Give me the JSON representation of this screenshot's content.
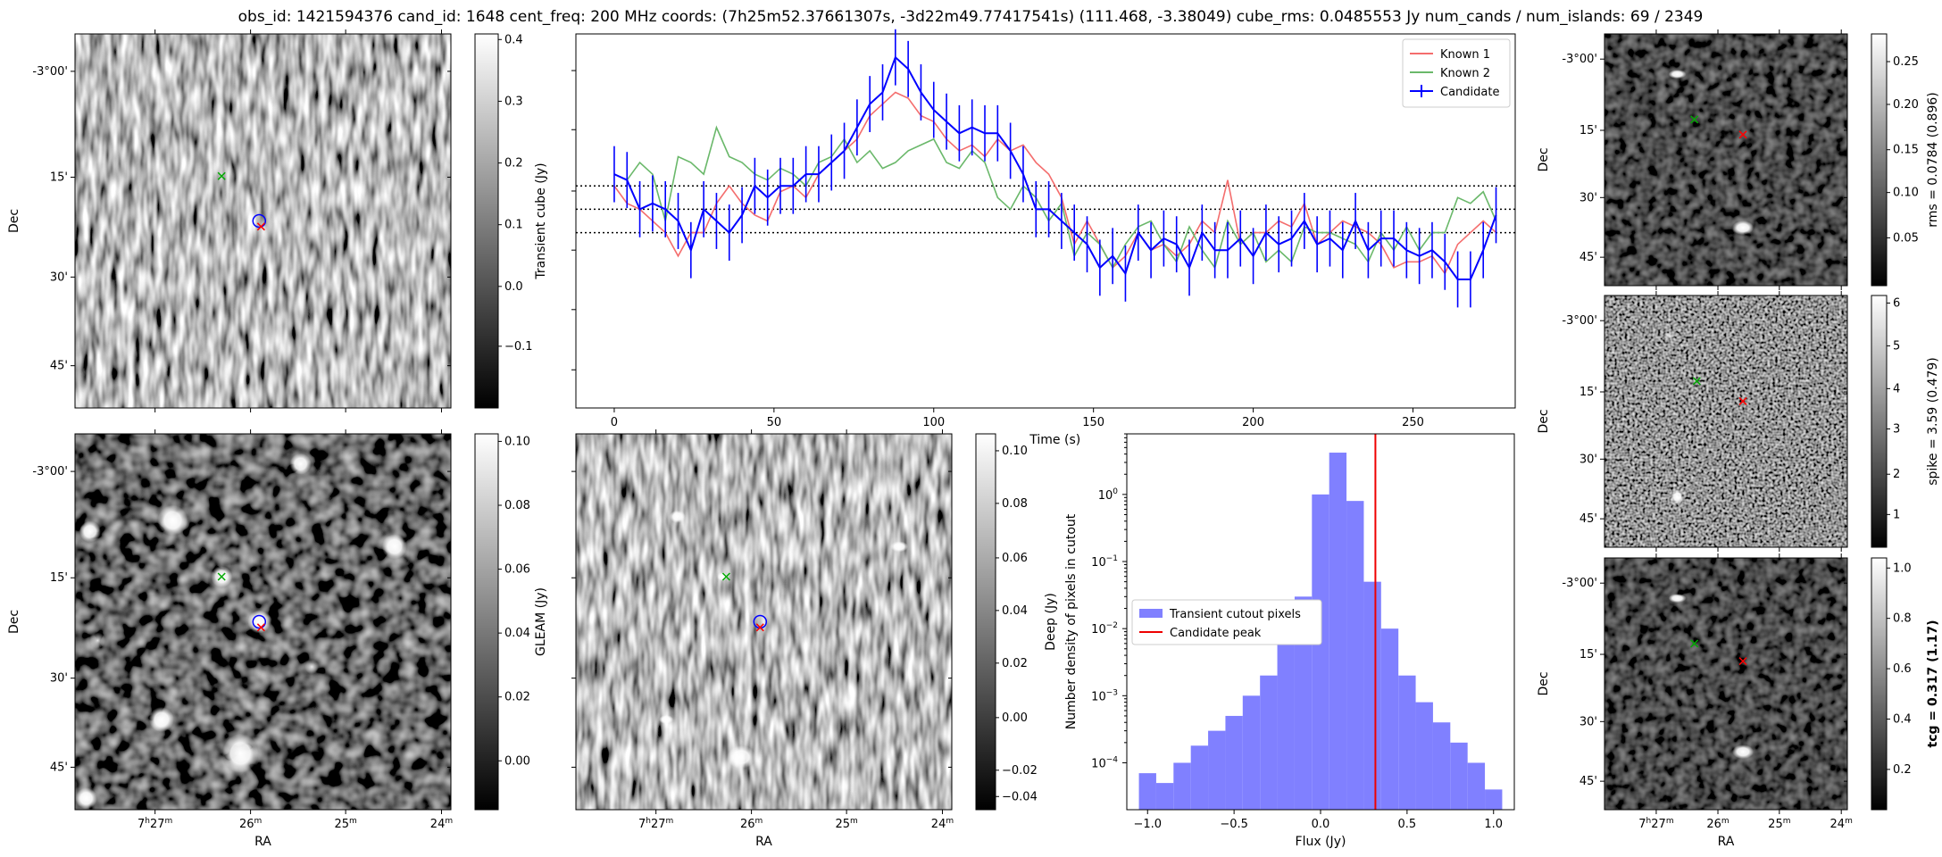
{
  "title": "obs_id: 1421594376 cand_id: 1648 cent_freq: 200 MHz coords: (7h25m52.37661307s, -3d22m49.77417541s) (111.468, -3.38049) cube_rms: 0.0485553 Jy num_cands / num_islands: 69 / 2349",
  "colors": {
    "known1": "#f46d6d",
    "known2": "#6ab86a",
    "candidate": "#0000ff",
    "hist": "#8080ff",
    "peak": "#ee0000",
    "marker_red": "#ff0000",
    "marker_green": "#00aa00",
    "marker_blue": "#0000ff"
  },
  "axes": {
    "dec_ticks": [
      "-3°00'",
      "15'",
      "30'",
      "45'"
    ],
    "ra_ticks": [
      "7h27m",
      "26m",
      "25m",
      "24m"
    ],
    "ra_label": "RA",
    "dec_label": "Dec"
  },
  "panels": {
    "transient_image": {
      "colorbar_label": "Transient cube (Jy)",
      "colorbar_ticks": [
        "0.4",
        "0.3",
        "0.2",
        "0.1",
        "0.0",
        "−0.1"
      ]
    },
    "gleam_image": {
      "colorbar_label": "GLEAM (Jy)",
      "colorbar_ticks": [
        "0.10",
        "0.08",
        "0.06",
        "0.04",
        "0.02",
        "0.00"
      ]
    },
    "deep_image": {
      "colorbar_label": "Deep (Jy)",
      "colorbar_ticks": [
        "0.10",
        "0.08",
        "0.06",
        "0.04",
        "0.02",
        "0.00",
        "−0.02",
        "−0.04"
      ]
    },
    "rms_image": {
      "colorbar_label": "rms = 0.0784 (0.896)",
      "colorbar_ticks": [
        "0.25",
        "0.20",
        "0.15",
        "0.10",
        "0.05"
      ]
    },
    "spike_image": {
      "colorbar_label": "spike = 3.59 (0.479)",
      "colorbar_ticks": [
        "6",
        "5",
        "4",
        "3",
        "2",
        "1"
      ]
    },
    "tcg_image": {
      "colorbar_label": "tcg = 0.317 (1.17)",
      "colorbar_ticks": [
        "1.0",
        "0.8",
        "0.6",
        "0.4",
        "0.2"
      ]
    }
  },
  "chart_data": [
    {
      "type": "line",
      "title": "",
      "xlabel": "Time (s)",
      "ylabel": "",
      "xlim": [
        -12,
        282
      ],
      "ylim": [
        -1.7,
        1.5
      ],
      "x_ticks": [
        0,
        50,
        100,
        150,
        200,
        250
      ],
      "hlines": [
        0.2,
        0,
        -0.2
      ],
      "legend": [
        "Known 1",
        "Known 2",
        "Candidate"
      ],
      "legend_position": "top-right",
      "x": [
        0,
        4,
        8,
        12,
        16,
        20,
        24,
        28,
        32,
        36,
        40,
        44,
        48,
        52,
        56,
        60,
        64,
        68,
        72,
        76,
        80,
        84,
        88,
        92,
        96,
        100,
        104,
        108,
        112,
        116,
        120,
        124,
        128,
        132,
        136,
        140,
        144,
        148,
        152,
        156,
        160,
        164,
        168,
        172,
        176,
        180,
        184,
        188,
        192,
        196,
        200,
        204,
        208,
        212,
        216,
        220,
        224,
        228,
        232,
        236,
        240,
        244,
        248,
        252,
        256,
        260,
        264,
        268,
        272,
        276
      ],
      "series": [
        {
          "name": "Known 1",
          "values": [
            0.2,
            0.05,
            0.0,
            -0.1,
            -0.2,
            -0.4,
            -0.2,
            -0.2,
            0.05,
            0.2,
            0.05,
            -0.05,
            -0.1,
            0.15,
            0.2,
            0.1,
            0.3,
            0.4,
            0.5,
            0.6,
            0.8,
            0.9,
            1.0,
            0.95,
            0.8,
            0.75,
            0.6,
            0.5,
            0.55,
            0.45,
            0.6,
            0.5,
            0.55,
            0.4,
            0.3,
            0.1,
            -0.3,
            -0.1,
            -0.3,
            -0.5,
            -0.4,
            -0.2,
            -0.35,
            -0.3,
            -0.4,
            -0.3,
            -0.1,
            -0.2,
            0.25,
            -0.3,
            -0.2,
            -0.2,
            -0.1,
            -0.15,
            0.05,
            -0.3,
            -0.2,
            -0.1,
            -0.15,
            -0.2,
            -0.3,
            -0.5,
            -0.45,
            -0.45,
            -0.4,
            -0.55,
            -0.3,
            -0.2,
            -0.1,
            -0.2
          ]
        },
        {
          "name": "Known 2",
          "values": [
            0.3,
            0.25,
            0.4,
            0.3,
            -0.1,
            0.45,
            0.4,
            0.3,
            0.7,
            0.45,
            0.4,
            0.3,
            0.25,
            0.35,
            0.3,
            0.2,
            0.4,
            0.45,
            0.6,
            0.4,
            0.5,
            0.35,
            0.4,
            0.5,
            0.55,
            0.6,
            0.4,
            0.35,
            0.5,
            0.4,
            0.1,
            0.0,
            0.2,
            0.1,
            -0.1,
            0.05,
            -0.4,
            -0.2,
            -0.3,
            -0.5,
            -0.3,
            -0.15,
            -0.1,
            -0.3,
            -0.45,
            -0.15,
            -0.35,
            -0.5,
            -0.1,
            -0.3,
            -0.2,
            -0.45,
            -0.35,
            -0.45,
            -0.15,
            -0.2,
            -0.2,
            -0.25,
            -0.3,
            -0.45,
            -0.2,
            -0.35,
            -0.15,
            -0.35,
            -0.2,
            -0.2,
            0.1,
            0.05,
            0.15,
            -0.1
          ]
        },
        {
          "name": "Candidate",
          "values": [
            0.3,
            0.25,
            0.0,
            0.05,
            0.0,
            -0.1,
            -0.35,
            0.0,
            -0.1,
            -0.2,
            -0.05,
            0.2,
            0.1,
            0.2,
            0.2,
            0.3,
            0.3,
            0.4,
            0.5,
            0.7,
            0.9,
            1.0,
            1.3,
            1.2,
            1.0,
            0.85,
            0.75,
            0.65,
            0.7,
            0.65,
            0.65,
            0.5,
            0.3,
            0.0,
            0.0,
            -0.1,
            -0.2,
            -0.3,
            -0.5,
            -0.4,
            -0.55,
            -0.2,
            -0.35,
            -0.25,
            -0.3,
            -0.5,
            -0.2,
            -0.35,
            -0.35,
            -0.25,
            -0.4,
            -0.2,
            -0.3,
            -0.25,
            -0.1,
            -0.3,
            -0.25,
            -0.35,
            -0.1,
            -0.35,
            -0.25,
            -0.25,
            -0.35,
            -0.4,
            -0.35,
            -0.45,
            -0.6,
            -0.6,
            -0.35,
            -0.05
          ]
        }
      ],
      "candidate_error": 0.24
    },
    {
      "type": "bar",
      "title": "",
      "xlabel": "Flux (Jy)",
      "ylabel": "Number density of pixels in cutout",
      "y_scale": "log",
      "xlim": [
        -1.12,
        1.12
      ],
      "ylim": [
        2e-05,
        8
      ],
      "x_ticks": [
        -1.0,
        -0.5,
        0.0,
        0.5,
        1.0
      ],
      "y_tick_exponents": [
        -4,
        -3,
        -2,
        -1,
        0
      ],
      "bin_edges": [
        -1.05,
        -0.95,
        -0.85,
        -0.75,
        -0.65,
        -0.55,
        -0.45,
        -0.35,
        -0.25,
        -0.15,
        -0.05,
        0.05,
        0.15,
        0.25,
        0.35,
        0.45,
        0.55,
        0.65,
        0.75,
        0.85,
        0.95,
        1.05
      ],
      "values": [
        7e-05,
        5e-05,
        0.0001,
        0.00018,
        0.0003,
        0.0005,
        0.001,
        0.002,
        0.006,
        0.03,
        1.0,
        4.2,
        0.8,
        0.05,
        0.01,
        0.002,
        0.0008,
        0.0004,
        0.0002,
        0.0001,
        4e-05
      ],
      "candidate_peak": 0.317,
      "legend": [
        "Transient cutout pixels",
        "Candidate peak"
      ],
      "legend_position": "center-left"
    }
  ]
}
